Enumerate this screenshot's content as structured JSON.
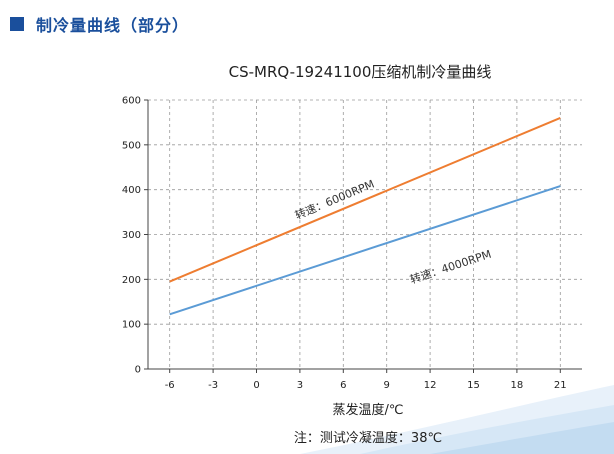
{
  "section": {
    "title": "制冷量曲线（部分）"
  },
  "colors": {
    "accent": "#1a4f9c",
    "series_6000": "#ee7d31",
    "series_4000": "#5b9bd5"
  },
  "chart_data": {
    "type": "line",
    "title": "CS-MRQ-19241100压缩机制冷量曲线",
    "xlabel": "蒸发温度/℃",
    "ylabel": "",
    "xlim": [
      -7.5,
      22.5
    ],
    "ylim": [
      0,
      600
    ],
    "xticks": [
      -6,
      -3,
      0,
      3,
      6,
      9,
      12,
      15,
      18,
      21
    ],
    "yticks": [
      0,
      100,
      200,
      300,
      400,
      500,
      600
    ],
    "grid": true,
    "series": [
      {
        "name": "转速：6000RPM",
        "color": "#ee7d31",
        "x": [
          -6,
          21
        ],
        "y": [
          195,
          560
        ]
      },
      {
        "name": "转速：4000RPM",
        "color": "#5b9bd5",
        "x": [
          -6,
          21
        ],
        "y": [
          122,
          408
        ]
      }
    ],
    "annotations": [
      {
        "text": "转速：6000RPM",
        "x": 5.5,
        "y": 370,
        "series": 0
      },
      {
        "text": "转速：4000RPM",
        "x": 13.5,
        "y": 220,
        "series": 1
      }
    ],
    "note": "注：测试冷凝温度：38℃"
  }
}
